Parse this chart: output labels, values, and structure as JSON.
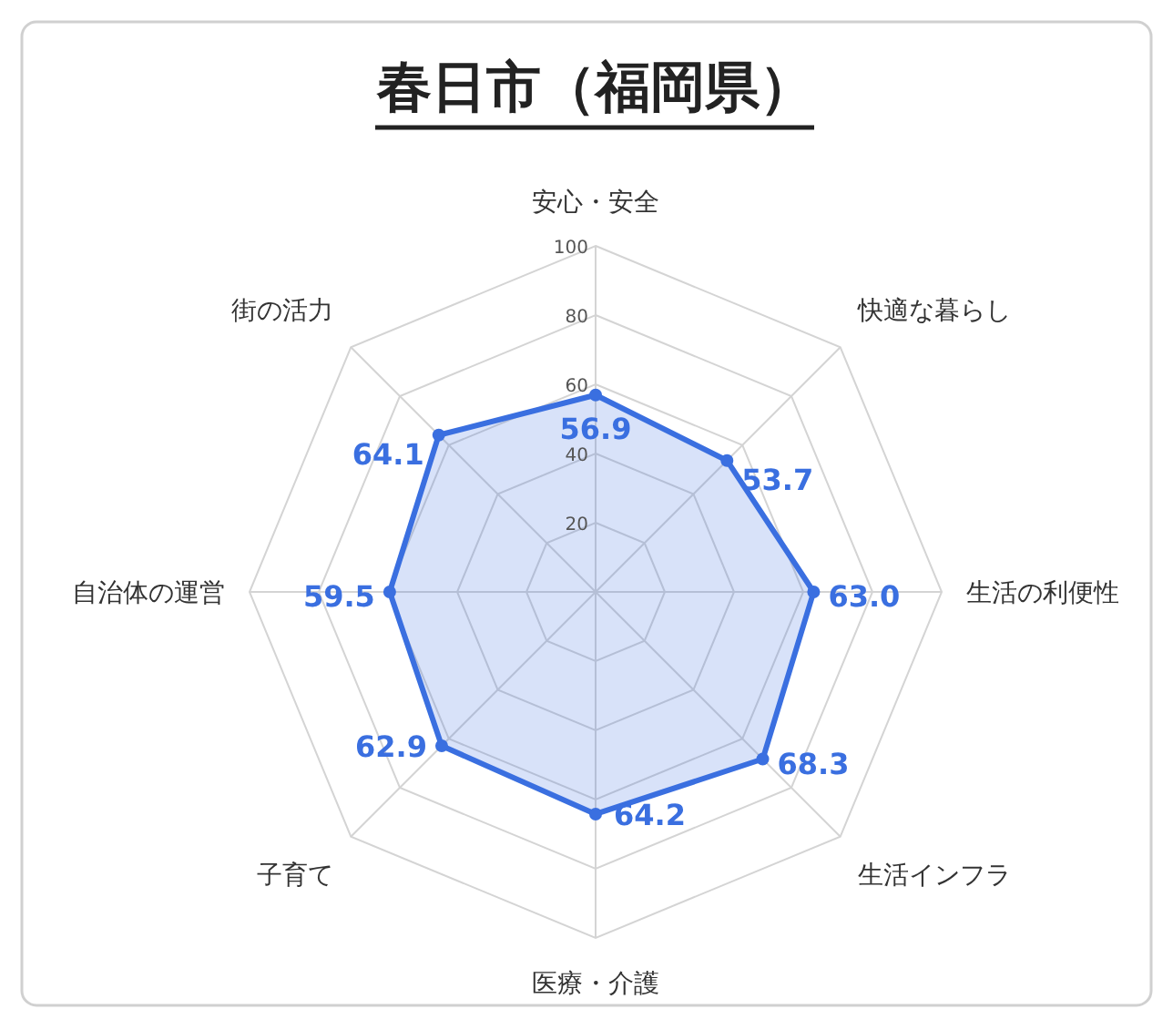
{
  "chart_data": {
    "type": "radar",
    "title": "春日市（福岡県）",
    "categories": [
      "安心・安全",
      "快適な暮らし",
      "生活の利便性",
      "生活インフラ",
      "医療・介護",
      "子育て",
      "自治体の運営",
      "街の活力"
    ],
    "series": [
      {
        "color": "#3a6fe0",
        "values": [
          56.9,
          53.7,
          63.0,
          68.3,
          64.2,
          62.9,
          59.5,
          64.1
        ],
        "value_labels": [
          "56.9",
          "53.7",
          "63.0",
          "68.3",
          "64.2",
          "62.9",
          "59.5",
          "64.1"
        ]
      }
    ],
    "ylim": [
      0,
      100
    ],
    "yticks": [
      20,
      40,
      60,
      80,
      100
    ],
    "grid": true,
    "marker": "circle"
  }
}
